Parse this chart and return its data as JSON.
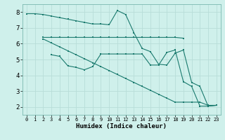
{
  "xlabel": "Humidex (Indice chaleur)",
  "bg_color": "#cff0eb",
  "grid_color": "#b8ddd8",
  "line_color": "#1a7a6e",
  "line1_x": [
    0,
    1,
    2,
    3,
    4,
    5,
    6,
    7,
    8,
    9,
    10,
    11,
    12,
    13,
    14,
    15,
    16,
    17,
    18,
    19,
    20,
    21,
    22,
    23
  ],
  "line1_y": [
    7.9,
    7.9,
    7.85,
    7.75,
    7.65,
    7.55,
    7.45,
    7.35,
    7.25,
    7.25,
    7.2,
    8.1,
    7.85,
    6.7,
    5.7,
    5.5,
    4.7,
    4.65,
    5.4,
    5.6,
    3.55,
    3.3,
    2.05,
    2.1
  ],
  "line2_x": [
    2,
    3,
    4,
    5,
    6,
    7,
    8,
    9,
    10,
    11,
    12,
    13,
    14,
    15,
    16,
    17,
    18,
    19
  ],
  "line2_y": [
    6.4,
    6.4,
    6.4,
    6.4,
    6.4,
    6.4,
    6.4,
    6.4,
    6.4,
    6.4,
    6.4,
    6.4,
    6.4,
    6.4,
    6.4,
    6.4,
    6.4,
    6.35
  ],
  "line3_x": [
    3,
    4,
    5,
    6,
    7,
    8,
    9,
    10,
    11,
    12,
    13,
    14,
    15,
    16,
    17,
    18,
    19,
    20,
    21,
    22,
    23
  ],
  "line3_y": [
    5.3,
    5.2,
    4.6,
    4.5,
    4.35,
    4.55,
    5.35,
    5.35,
    5.35,
    5.35,
    5.35,
    5.35,
    4.65,
    4.65,
    5.45,
    5.6,
    3.6,
    3.3,
    2.05,
    2.05,
    2.1
  ],
  "line4_x": [
    2,
    3,
    4,
    5,
    6,
    7,
    8,
    9,
    10,
    11,
    12,
    13,
    14,
    15,
    16,
    17,
    18,
    19,
    20,
    21,
    22,
    23
  ],
  "line4_y": [
    6.3,
    6.05,
    5.8,
    5.55,
    5.3,
    5.05,
    4.8,
    4.55,
    4.3,
    4.05,
    3.8,
    3.55,
    3.3,
    3.05,
    2.8,
    2.55,
    2.3,
    2.3,
    2.3,
    2.3,
    2.1,
    2.1
  ],
  "xlim": [
    -0.5,
    23.5
  ],
  "ylim": [
    1.5,
    8.5
  ],
  "yticks": [
    2,
    3,
    4,
    5,
    6,
    7,
    8
  ],
  "xticks": [
    0,
    1,
    2,
    3,
    4,
    5,
    6,
    7,
    8,
    9,
    10,
    11,
    12,
    13,
    14,
    15,
    16,
    17,
    18,
    19,
    20,
    21,
    22,
    23
  ]
}
